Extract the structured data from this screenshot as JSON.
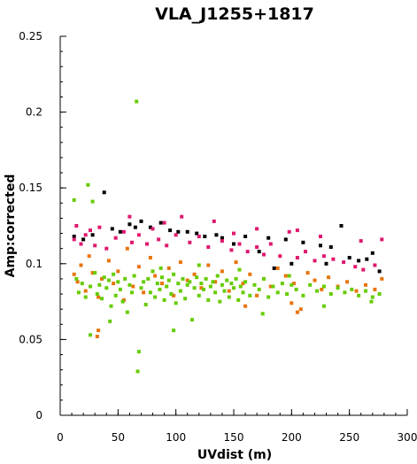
{
  "chart_data": {
    "type": "scatter",
    "title": "VLA_J1255+1817",
    "xlabel": "UVdist (m)",
    "ylabel": "Amp:corrected",
    "xlim": [
      0,
      300
    ],
    "ylim": [
      0,
      0.25
    ],
    "x_ticks": [
      "0",
      "50",
      "100",
      "150",
      "200",
      "250",
      "300"
    ],
    "y_ticks": [
      "0",
      "0.05",
      "0.1",
      "0.15",
      "0.2",
      "0.25"
    ],
    "x_tick_values": [
      0,
      50,
      100,
      150,
      200,
      250,
      300
    ],
    "y_tick_values": [
      0,
      0.05,
      0.1,
      0.15,
      0.2,
      0.25
    ],
    "series_colors": [
      "#000000",
      "#e0186f",
      "#e8740c",
      "#66cc00"
    ],
    "series": [
      {
        "color": "#000000",
        "points": [
          [
            38,
            0.147
          ],
          [
            45,
            0.123
          ],
          [
            52,
            0.121
          ],
          [
            60,
            0.126
          ],
          [
            70,
            0.128
          ],
          [
            78,
            0.124
          ],
          [
            87,
            0.127
          ],
          [
            95,
            0.122
          ],
          [
            110,
            0.121
          ],
          [
            118,
            0.12
          ],
          [
            135,
            0.119
          ],
          [
            160,
            0.118
          ],
          [
            180,
            0.117
          ],
          [
            195,
            0.116
          ],
          [
            210,
            0.114
          ],
          [
            225,
            0.112
          ],
          [
            234,
            0.111
          ],
          [
            243,
            0.125
          ],
          [
            250,
            0.104
          ],
          [
            258,
            0.102
          ],
          [
            265,
            0.103
          ],
          [
            270,
            0.107
          ],
          [
            276,
            0.095
          ],
          [
            185,
            0.097
          ],
          [
            200,
            0.1
          ],
          [
            230,
            0.1
          ],
          [
            172,
            0.108
          ],
          [
            150,
            0.113
          ],
          [
            125,
            0.118
          ],
          [
            102,
            0.121
          ],
          [
            12,
            0.118
          ],
          [
            20,
            0.116
          ],
          [
            28,
            0.119
          ],
          [
            65,
            0.124
          ],
          [
            140,
            0.117
          ]
        ]
      },
      {
        "color": "#e0186f",
        "points": [
          [
            12,
            0.116
          ],
          [
            14,
            0.125
          ],
          [
            18,
            0.113
          ],
          [
            22,
            0.119
          ],
          [
            26,
            0.122
          ],
          [
            30,
            0.112
          ],
          [
            34,
            0.124
          ],
          [
            40,
            0.11
          ],
          [
            48,
            0.117
          ],
          [
            55,
            0.121
          ],
          [
            62,
            0.114
          ],
          [
            68,
            0.119
          ],
          [
            75,
            0.113
          ],
          [
            80,
            0.123
          ],
          [
            85,
            0.116
          ],
          [
            92,
            0.112
          ],
          [
            100,
            0.119
          ],
          [
            105,
            0.131
          ],
          [
            112,
            0.114
          ],
          [
            120,
            0.118
          ],
          [
            128,
            0.111
          ],
          [
            133,
            0.128
          ],
          [
            140,
            0.115
          ],
          [
            148,
            0.109
          ],
          [
            155,
            0.113
          ],
          [
            162,
            0.108
          ],
          [
            170,
            0.111
          ],
          [
            176,
            0.106
          ],
          [
            182,
            0.113
          ],
          [
            190,
            0.105
          ],
          [
            198,
            0.121
          ],
          [
            205,
            0.104
          ],
          [
            212,
            0.108
          ],
          [
            220,
            0.102
          ],
          [
            228,
            0.105
          ],
          [
            236,
            0.103
          ],
          [
            245,
            0.101
          ],
          [
            255,
            0.098
          ],
          [
            262,
            0.096
          ],
          [
            272,
            0.099
          ],
          [
            278,
            0.116
          ],
          [
            225,
            0.118
          ],
          [
            205,
            0.122
          ],
          [
            60,
            0.131
          ],
          [
            90,
            0.127
          ],
          [
            150,
            0.12
          ],
          [
            170,
            0.123
          ],
          [
            260,
            0.115
          ]
        ]
      },
      {
        "color": "#e8740c",
        "points": [
          [
            12,
            0.093
          ],
          [
            15,
            0.088
          ],
          [
            18,
            0.099
          ],
          [
            22,
            0.082
          ],
          [
            25,
            0.105
          ],
          [
            28,
            0.094
          ],
          [
            33,
            0.078
          ],
          [
            36,
            0.09
          ],
          [
            42,
            0.102
          ],
          [
            46,
            0.087
          ],
          [
            50,
            0.095
          ],
          [
            55,
            0.076
          ],
          [
            58,
            0.11
          ],
          [
            63,
            0.085
          ],
          [
            68,
            0.098
          ],
          [
            72,
            0.081
          ],
          [
            78,
            0.104
          ],
          [
            82,
            0.092
          ],
          [
            88,
            0.087
          ],
          [
            94,
            0.097
          ],
          [
            98,
            0.079
          ],
          [
            104,
            0.101
          ],
          [
            110,
            0.089
          ],
          [
            116,
            0.093
          ],
          [
            122,
            0.084
          ],
          [
            128,
            0.099
          ],
          [
            134,
            0.088
          ],
          [
            140,
            0.095
          ],
          [
            146,
            0.082
          ],
          [
            152,
            0.101
          ],
          [
            158,
            0.087
          ],
          [
            164,
            0.093
          ],
          [
            170,
            0.079
          ],
          [
            176,
            0.09
          ],
          [
            182,
            0.085
          ],
          [
            188,
            0.097
          ],
          [
            195,
            0.092
          ],
          [
            202,
            0.087
          ],
          [
            208,
            0.07
          ],
          [
            214,
            0.094
          ],
          [
            220,
            0.089
          ],
          [
            226,
            0.083
          ],
          [
            232,
            0.091
          ],
          [
            240,
            0.085
          ],
          [
            248,
            0.088
          ],
          [
            256,
            0.082
          ],
          [
            264,
            0.086
          ],
          [
            272,
            0.083
          ],
          [
            278,
            0.09
          ],
          [
            33,
            0.056
          ],
          [
            32,
            0.052
          ],
          [
            200,
            0.074
          ],
          [
            205,
            0.068
          ],
          [
            160,
            0.072
          ]
        ]
      },
      {
        "color": "#66cc00",
        "points": [
          [
            12,
            0.142
          ],
          [
            14,
            0.09
          ],
          [
            16,
            0.081
          ],
          [
            19,
            0.087
          ],
          [
            22,
            0.078
          ],
          [
            24,
            0.152
          ],
          [
            26,
            0.085
          ],
          [
            28,
            0.141
          ],
          [
            30,
            0.094
          ],
          [
            32,
            0.08
          ],
          [
            34,
            0.086
          ],
          [
            36,
            0.077
          ],
          [
            38,
            0.091
          ],
          [
            40,
            0.084
          ],
          [
            42,
            0.089
          ],
          [
            44,
            0.072
          ],
          [
            46,
            0.093
          ],
          [
            48,
            0.079
          ],
          [
            50,
            0.088
          ],
          [
            52,
            0.083
          ],
          [
            54,
            0.075
          ],
          [
            56,
            0.09
          ],
          [
            58,
            0.068
          ],
          [
            60,
            0.086
          ],
          [
            62,
            0.081
          ],
          [
            64,
            0.092
          ],
          [
            66,
            0.207
          ],
          [
            67,
            0.029
          ],
          [
            68,
            0.042
          ],
          [
            70,
            0.084
          ],
          [
            72,
            0.088
          ],
          [
            74,
            0.073
          ],
          [
            76,
            0.09
          ],
          [
            78,
            0.081
          ],
          [
            80,
            0.095
          ],
          [
            82,
            0.078
          ],
          [
            84,
            0.087
          ],
          [
            86,
            0.083
          ],
          [
            88,
            0.091
          ],
          [
            90,
            0.076
          ],
          [
            92,
            0.085
          ],
          [
            94,
            0.089
          ],
          [
            96,
            0.08
          ],
          [
            98,
            0.093
          ],
          [
            100,
            0.074
          ],
          [
            102,
            0.087
          ],
          [
            104,
            0.082
          ],
          [
            106,
            0.09
          ],
          [
            108,
            0.077
          ],
          [
            110,
            0.086
          ],
          [
            112,
            0.088
          ],
          [
            114,
            0.063
          ],
          [
            116,
            0.084
          ],
          [
            118,
            0.091
          ],
          [
            120,
            0.079
          ],
          [
            122,
            0.087
          ],
          [
            124,
            0.083
          ],
          [
            126,
            0.09
          ],
          [
            128,
            0.076
          ],
          [
            130,
            0.085
          ],
          [
            132,
            0.088
          ],
          [
            134,
            0.081
          ],
          [
            136,
            0.092
          ],
          [
            138,
            0.075
          ],
          [
            140,
            0.086
          ],
          [
            142,
            0.082
          ],
          [
            144,
            0.089
          ],
          [
            146,
            0.078
          ],
          [
            148,
            0.087
          ],
          [
            150,
            0.084
          ],
          [
            152,
            0.09
          ],
          [
            154,
            0.076
          ],
          [
            156,
            0.085
          ],
          [
            158,
            0.081
          ],
          [
            160,
            0.088
          ],
          [
            164,
            0.079
          ],
          [
            168,
            0.086
          ],
          [
            172,
            0.083
          ],
          [
            176,
            0.09
          ],
          [
            180,
            0.078
          ],
          [
            184,
            0.085
          ],
          [
            188,
            0.081
          ],
          [
            192,
            0.087
          ],
          [
            196,
            0.08
          ],
          [
            200,
            0.086
          ],
          [
            204,
            0.083
          ],
          [
            210,
            0.079
          ],
          [
            216,
            0.086
          ],
          [
            222,
            0.082
          ],
          [
            228,
            0.085
          ],
          [
            234,
            0.08
          ],
          [
            240,
            0.084
          ],
          [
            246,
            0.081
          ],
          [
            252,
            0.083
          ],
          [
            258,
            0.079
          ],
          [
            264,
            0.082
          ],
          [
            270,
            0.078
          ],
          [
            276,
            0.08
          ],
          [
            98,
            0.056
          ],
          [
            26,
            0.053
          ],
          [
            43,
            0.062
          ],
          [
            175,
            0.067
          ],
          [
            228,
            0.072
          ],
          [
            269,
            0.075
          ],
          [
            87,
            0.097
          ],
          [
            120,
            0.099
          ],
          [
            155,
            0.096
          ],
          [
            198,
            0.092
          ]
        ]
      }
    ]
  }
}
